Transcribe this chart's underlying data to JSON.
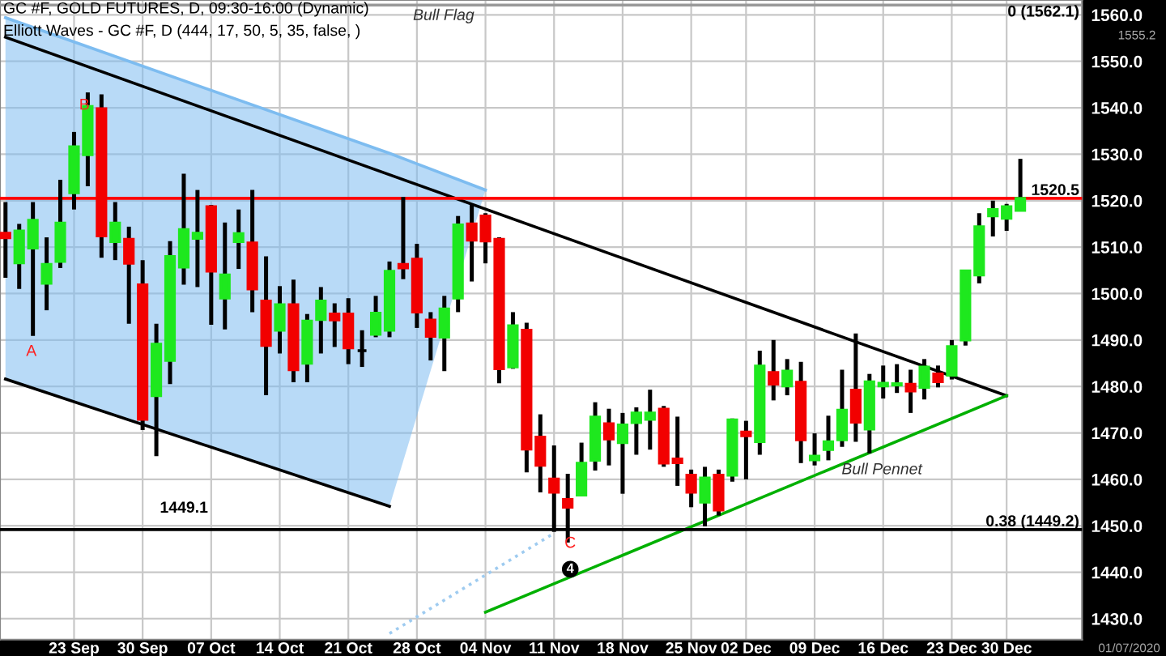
{
  "chart_data": {
    "type": "candlestick",
    "title": "GC #F, GOLD FUTURES, D, 09:30-16:00 (Dynamic)",
    "subtitle": "Elliott Waves - GC #F, D (444, 17, 50, 5, 35, false, )",
    "categories": [
      null,
      null,
      null,
      null,
      null,
      "23 Sep",
      null,
      null,
      null,
      null,
      "30 Sep",
      null,
      null,
      null,
      null,
      "07 Oct",
      null,
      null,
      null,
      null,
      "14 Oct",
      null,
      null,
      null,
      null,
      "21 Oct",
      null,
      null,
      null,
      null,
      "28 Oct",
      null,
      null,
      null,
      null,
      "04 Nov",
      null,
      null,
      null,
      null,
      "11 Nov",
      null,
      null,
      null,
      null,
      "18 Nov",
      null,
      null,
      null,
      null,
      "25 Nov",
      null,
      null,
      null,
      "02 Dec",
      null,
      null,
      null,
      null,
      "09 Dec",
      null,
      null,
      null,
      null,
      "16 Dec",
      null,
      null,
      null,
      null,
      "23 Dec",
      null,
      null,
      null,
      "30 Dec",
      null
    ],
    "ohlc": [
      [
        1513.0,
        1519.7,
        1503.4,
        1512.0
      ],
      [
        1506.6,
        1515.0,
        1501.0,
        1513.5
      ],
      [
        1509.8,
        1519.7,
        1490.9,
        1515.8
      ],
      [
        1502.2,
        1512.1,
        1496.4,
        1506.3
      ],
      [
        1506.9,
        1524.5,
        1505.5,
        1515.2
      ],
      [
        1521.7,
        1534.8,
        1518.1,
        1531.6
      ],
      [
        1529.9,
        1543.3,
        1523.1,
        1540.3
      ],
      [
        1539.8,
        1542.9,
        1507.7,
        1512.4
      ],
      [
        1511.2,
        1519.7,
        1507.2,
        1515.2
      ],
      [
        1511.7,
        1514.4,
        1493.5,
        1506.5
      ],
      [
        1501.9,
        1507.2,
        1470.6,
        1472.9
      ],
      [
        1478.0,
        1493.5,
        1465.0,
        1489.1
      ],
      [
        1485.6,
        1511.3,
        1480.5,
        1508.0
      ],
      [
        1505.7,
        1525.8,
        1501.9,
        1513.8
      ],
      [
        1511.9,
        1522.3,
        1501.4,
        1513.0
      ],
      [
        1518.7,
        1519.1,
        1493.3,
        1504.8
      ],
      [
        1499.0,
        1515.3,
        1492.3,
        1504.0
      ],
      [
        1511.2,
        1518.1,
        1505.3,
        1512.9
      ],
      [
        1510.9,
        1522.3,
        1496.0,
        1501.0
      ],
      [
        1498.4,
        1508.0,
        1478.1,
        1488.8
      ],
      [
        1492.1,
        1501.6,
        1487.1,
        1497.6
      ],
      [
        1497.6,
        1503.0,
        1480.9,
        1483.6
      ],
      [
        1485.0,
        1495.6,
        1480.9,
        1494.1
      ],
      [
        1494.4,
        1501.4,
        1487.1,
        1498.4
      ],
      [
        1495.6,
        1497.9,
        1488.5,
        1494.3
      ],
      [
        1495.6,
        1499.0,
        1484.8,
        1488.3
      ],
      [
        1487.7,
        1492.1,
        1484.2,
        1487.7
      ],
      [
        1491.2,
        1499.5,
        1490.6,
        1495.8
      ],
      [
        1492.1,
        1506.9,
        1490.6,
        1504.8
      ],
      [
        1506.3,
        1520.8,
        1503.1,
        1505.5
      ],
      [
        1507.4,
        1510.7,
        1492.6,
        1496.0
      ],
      [
        1494.3,
        1496.0,
        1485.6,
        1490.8
      ],
      [
        1490.6,
        1499.5,
        1483.3,
        1496.7
      ],
      [
        1499.0,
        1516.7,
        1496.0,
        1514.8
      ],
      [
        1515.0,
        1519.1,
        1502.6,
        1511.5
      ],
      [
        1516.7,
        1517.3,
        1506.5,
        1511.3
      ],
      [
        1511.7,
        1512.1,
        1480.7,
        1483.8
      ],
      [
        1484.2,
        1496.0,
        1483.8,
        1493.1
      ],
      [
        1492.1,
        1493.7,
        1461.5,
        1466.5
      ],
      [
        1469.1,
        1474.0,
        1457.2,
        1463.0
      ],
      [
        1460.1,
        1467.3,
        1448.7,
        1457.2
      ],
      [
        1455.7,
        1461.2,
        1446.4,
        1454.0
      ],
      [
        1456.6,
        1467.9,
        1456.6,
        1463.5
      ],
      [
        1464.1,
        1476.6,
        1461.9,
        1473.4
      ],
      [
        1472.0,
        1475.2,
        1463.0,
        1468.7
      ],
      [
        1467.9,
        1474.3,
        1456.9,
        1471.7
      ],
      [
        1472.2,
        1475.5,
        1465.3,
        1474.3
      ],
      [
        1472.9,
        1479.3,
        1466.4,
        1474.3
      ],
      [
        1475.1,
        1475.8,
        1462.7,
        1463.5
      ],
      [
        1464.4,
        1473.5,
        1458.6,
        1463.6
      ],
      [
        1460.9,
        1462.1,
        1454.0,
        1457.2
      ],
      [
        1455.1,
        1462.7,
        1449.9,
        1460.3
      ],
      [
        1460.9,
        1462.1,
        1452.2,
        1453.4
      ],
      [
        1460.9,
        1473.1,
        1459.5,
        1472.8
      ],
      [
        1470.2,
        1472.6,
        1460.0,
        1469.4
      ],
      [
        1468.1,
        1487.7,
        1465.3,
        1484.4
      ],
      [
        1483.0,
        1490.0,
        1477.0,
        1480.5
      ],
      [
        1480.1,
        1485.9,
        1478.1,
        1483.3
      ],
      [
        1480.9,
        1485.3,
        1463.5,
        1468.5
      ],
      [
        1464.2,
        1469.9,
        1463.0,
        1465.0
      ],
      [
        1466.4,
        1473.7,
        1464.1,
        1468.1
      ],
      [
        1468.5,
        1483.6,
        1467.0,
        1474.9
      ],
      [
        1479.2,
        1491.4,
        1468.1,
        1472.3
      ],
      [
        1470.8,
        1482.7,
        1465.6,
        1481.0
      ],
      [
        1480.1,
        1484.5,
        1477.4,
        1480.7
      ],
      [
        1480.3,
        1484.8,
        1478.6,
        1480.6
      ],
      [
        1480.5,
        1483.6,
        1474.3,
        1479.0
      ],
      [
        1479.8,
        1485.9,
        1477.2,
        1484.2
      ],
      [
        1482.7,
        1484.5,
        1479.8,
        1481.0
      ],
      [
        1482.4,
        1490.0,
        1481.5,
        1488.6
      ],
      [
        1490.0,
        1505.1,
        1488.8,
        1504.9
      ],
      [
        1504.0,
        1517.3,
        1502.2,
        1514.4
      ],
      [
        1516.7,
        1520.0,
        1512.3,
        1518.1
      ],
      [
        1516.2,
        1519.3,
        1513.5,
        1518.7
      ],
      [
        1517.9,
        1529.0,
        1517.7,
        1520.5
      ]
    ],
    "colors": [
      "#f20000",
      "#1ee81e",
      "#1ee81e",
      "#1ee81e",
      "#1ee81e",
      "#1ee81e",
      "#1ee81e",
      "#f20000",
      "#1ee81e",
      "#f20000",
      "#f20000",
      "#1ee81e",
      "#1ee81e",
      "#1ee81e",
      "#1ee81e",
      "#f20000",
      "#1ee81e",
      "#1ee81e",
      "#f20000",
      "#f20000",
      "#1ee81e",
      "#f20000",
      "#1ee81e",
      "#1ee81e",
      "#f20000",
      "#f20000",
      "#000000",
      "#1ee81e",
      "#1ee81e",
      "#f20000",
      "#f20000",
      "#f20000",
      "#1ee81e",
      "#1ee81e",
      "#f20000",
      "#f20000",
      "#f20000",
      "#1ee81e",
      "#f20000",
      "#f20000",
      "#f20000",
      "#f20000",
      "#1ee81e",
      "#1ee81e",
      "#f20000",
      "#1ee81e",
      "#1ee81e",
      "#1ee81e",
      "#f20000",
      "#f20000",
      "#f20000",
      "#1ee81e",
      "#f20000",
      "#1ee81e",
      "#f20000",
      "#1ee81e",
      "#f20000",
      "#1ee81e",
      "#f20000",
      "#1ee81e",
      "#1ee81e",
      "#1ee81e",
      "#f20000",
      "#1ee81e",
      "#1ee81e",
      "#1ee81e",
      "#f20000",
      "#1ee81e",
      "#f20000",
      "#1ee81e",
      "#1ee81e",
      "#1ee81e",
      "#1ee81e",
      "#1ee81e",
      "#1ee81e"
    ],
    "series": [
      {
        "type": "line",
        "color": "#7dbcf0",
        "upper": [
          1559.4,
          null,
          null,
          null,
          null,
          null,
          null,
          null,
          null,
          null,
          null,
          null,
          null,
          null,
          null,
          null,
          null,
          null,
          null,
          null,
          null,
          null,
          null,
          null,
          null,
          null,
          null,
          null,
          1530.2,
          null,
          null,
          null,
          null,
          null,
          null,
          1522.3,
          null,
          null,
          null,
          null,
          null,
          null,
          null,
          null,
          null,
          null,
          null,
          null,
          null,
          null,
          null,
          null,
          null,
          null,
          null,
          null,
          null,
          null,
          null,
          null,
          null,
          null,
          null,
          null,
          null,
          null,
          null,
          null,
          null,
          null,
          null,
          null,
          null,
          null,
          null
        ],
        "values": [
          1559.4,
          null,
          null,
          null,
          null,
          null,
          null,
          null,
          null,
          null,
          null,
          null,
          null,
          null,
          null,
          null,
          null,
          null,
          null,
          null,
          null,
          null,
          null,
          null,
          null,
          null,
          null,
          null,
          1530.2,
          null,
          null,
          null,
          null,
          null,
          null,
          1522.3,
          null,
          null,
          null,
          null,
          null,
          null,
          null,
          null,
          null,
          null,
          null,
          null,
          null,
          null,
          null,
          null,
          null,
          null,
          null,
          null,
          null,
          null,
          null,
          null,
          null,
          null,
          null,
          null,
          null,
          null,
          null,
          null,
          null,
          null,
          null,
          null,
          null,
          null,
          null
        ],
        "lower": [
          1481.6,
          null,
          null,
          null,
          null,
          null,
          null,
          null,
          null,
          null,
          null,
          null,
          null,
          null,
          null,
          null,
          null,
          null,
          null,
          null,
          null,
          null,
          null,
          null,
          null,
          null,
          null,
          null,
          1454.2,
          null,
          null,
          null,
          null,
          null,
          null,
          1522.3,
          null,
          null,
          null,
          null,
          null,
          null,
          null,
          null,
          null,
          null,
          null,
          null,
          null,
          null,
          null,
          null,
          null,
          null,
          null,
          null,
          null,
          null,
          null,
          null,
          null,
          null,
          null,
          null,
          null,
          null,
          null,
          null,
          null,
          null,
          null,
          null,
          null,
          null,
          null
        ]
      },
      {
        "type": "line",
        "color": "#000000",
        "values": [
          1555.2,
          null,
          null,
          null,
          null,
          null,
          null,
          null,
          null,
          null,
          null,
          null,
          null,
          null,
          null,
          null,
          null,
          null,
          null,
          null,
          null,
          null,
          null,
          null,
          null,
          null,
          null,
          null,
          null,
          null,
          null,
          null,
          null,
          null,
          null,
          null,
          null,
          null,
          null,
          null,
          null,
          null,
          null,
          null,
          null,
          null,
          null,
          null,
          null,
          null,
          null,
          null,
          null,
          null,
          null,
          null,
          null,
          null,
          null,
          null,
          null,
          null,
          null,
          null,
          null,
          null,
          null,
          null,
          null,
          null,
          null,
          null,
          null,
          1478.0,
          null
        ]
      },
      {
        "type": "line",
        "color": "#000000",
        "values": [
          1481.6,
          null,
          null,
          null,
          null,
          null,
          null,
          null,
          null,
          null,
          null,
          null,
          null,
          null,
          null,
          null,
          null,
          null,
          null,
          null,
          null,
          null,
          null,
          null,
          null,
          null,
          null,
          null,
          1454.2,
          null,
          null,
          null,
          null,
          null,
          null,
          null,
          null,
          null,
          null,
          null,
          null,
          null,
          null,
          null,
          null,
          null,
          null,
          null,
          null,
          null,
          null,
          null,
          null,
          null,
          null,
          null,
          null,
          null,
          null,
          null,
          null,
          null,
          null,
          null,
          null,
          null,
          null,
          null,
          null,
          null,
          null,
          null,
          null,
          null,
          null
        ]
      },
      {
        "type": "line",
        "color": "#00b000",
        "values": [
          null,
          null,
          null,
          null,
          null,
          null,
          null,
          null,
          null,
          null,
          null,
          null,
          null,
          null,
          null,
          null,
          null,
          null,
          null,
          null,
          null,
          null,
          null,
          null,
          null,
          null,
          null,
          null,
          null,
          null,
          null,
          null,
          null,
          null,
          null,
          1431.4,
          null,
          null,
          null,
          null,
          null,
          null,
          null,
          null,
          null,
          null,
          null,
          null,
          null,
          null,
          null,
          null,
          null,
          null,
          null,
          null,
          null,
          null,
          null,
          null,
          null,
          null,
          null,
          null,
          null,
          null,
          null,
          null,
          null,
          null,
          null,
          null,
          null,
          1478.0,
          null
        ]
      },
      {
        "type": "line",
        "color": "#9ecbf0",
        "line_style": "dotted",
        "values": [
          null,
          null,
          null,
          null,
          null,
          null,
          null,
          null,
          null,
          null,
          null,
          null,
          null,
          null,
          null,
          null,
          null,
          null,
          null,
          null,
          null,
          null,
          null,
          null,
          null,
          null,
          null,
          null,
          1426.8,
          null,
          null,
          null,
          null,
          null,
          null,
          null,
          null,
          null,
          null,
          null,
          1448.4,
          null,
          null,
          null,
          null,
          null,
          null,
          null,
          null,
          null,
          null,
          null,
          null,
          null,
          null,
          null,
          null,
          null,
          null,
          null,
          null,
          null,
          null,
          null,
          null,
          null,
          null,
          null,
          null,
          null,
          null,
          null,
          null,
          null,
          null
        ]
      }
    ],
    "ylim": [
      1425.5,
      1563.2
    ],
    "yticks": [
      {
        "value": 1430,
        "label": "1430.0"
      },
      {
        "value": 1440,
        "label": "1440.0"
      },
      {
        "value": 1450,
        "label": "1450.0"
      },
      {
        "value": 1460,
        "label": "1460.0"
      },
      {
        "value": 1470,
        "label": "1470.0"
      },
      {
        "value": 1480,
        "label": "1480.0"
      },
      {
        "value": 1490,
        "label": "1490.0"
      },
      {
        "value": 1500,
        "label": "1500.0"
      },
      {
        "value": 1510,
        "label": "1510.0"
      },
      {
        "value": 1520,
        "label": "1520.0"
      },
      {
        "value": 1530,
        "label": "1530.0"
      },
      {
        "value": 1540,
        "label": "1540.0"
      },
      {
        "value": 1550,
        "label": "1550.0"
      },
      {
        "value": 1560,
        "label": "1560.0"
      }
    ],
    "grid": true,
    "ref_lines": [
      {
        "axis": "y",
        "value": 1520.5,
        "label": "1520.5",
        "color": "#ff0000"
      },
      {
        "axis": "y",
        "value": 1449.2,
        "label": "0.38 (1449.2)",
        "color": "#000000"
      },
      {
        "axis": "y",
        "value": 1562.1,
        "label": "0 (1562.1)",
        "color": "#999999"
      }
    ],
    "annotations": [
      "A",
      "B",
      "C",
      "4",
      "Bull Flag",
      "Bull Pennet",
      "1449.1",
      "1555.2",
      "01/07/2020"
    ]
  }
}
